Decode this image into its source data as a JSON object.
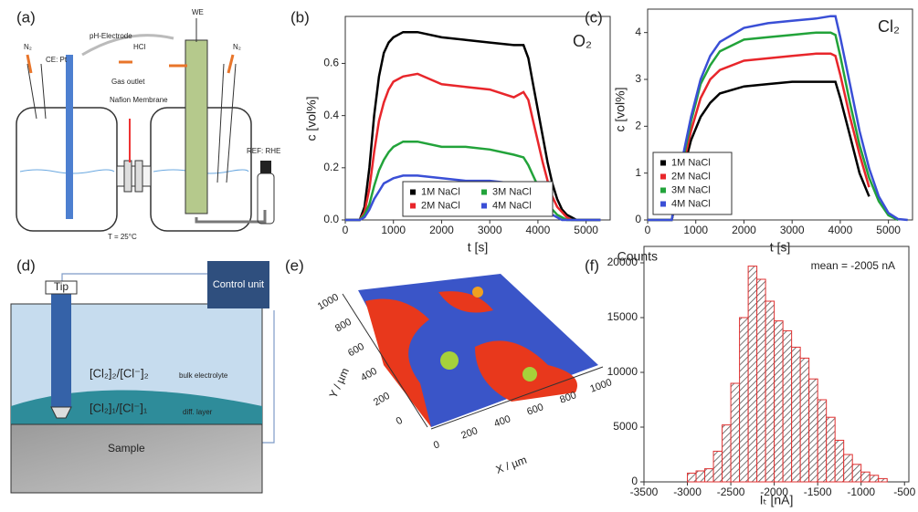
{
  "chart_data": [
    {
      "type": "line",
      "panel": "(b)",
      "annotation": "O₂",
      "ylabel": "c [vol%]",
      "xlabel": "t [s]",
      "x": [
        0,
        300,
        400,
        500,
        600,
        700,
        800,
        900,
        1000,
        1200,
        1500,
        2000,
        2500,
        3000,
        3500,
        3700,
        3800,
        3900,
        4000,
        4100,
        4200,
        4300,
        4400,
        4500,
        4600,
        4700,
        4800,
        5000,
        5300
      ],
      "series": [
        {
          "name": "1M NaCl",
          "color": "#000000",
          "values": [
            0,
            0,
            0.05,
            0.2,
            0.4,
            0.55,
            0.64,
            0.68,
            0.7,
            0.72,
            0.72,
            0.7,
            0.69,
            0.68,
            0.67,
            0.67,
            0.62,
            0.52,
            0.42,
            0.32,
            0.22,
            0.14,
            0.08,
            0.04,
            0.02,
            0.01,
            0,
            0,
            0
          ]
        },
        {
          "name": "2M NaCl",
          "color": "#e8262b",
          "values": [
            0,
            0,
            0.03,
            0.12,
            0.26,
            0.38,
            0.45,
            0.5,
            0.53,
            0.55,
            0.56,
            0.52,
            0.51,
            0.5,
            0.47,
            0.49,
            0.46,
            0.38,
            0.3,
            0.22,
            0.15,
            0.09,
            0.05,
            0.03,
            0.01,
            0,
            0,
            0,
            0
          ]
        },
        {
          "name": "3M NaCl",
          "color": "#22a33a",
          "values": [
            0,
            0,
            0.02,
            0.06,
            0.13,
            0.19,
            0.23,
            0.26,
            0.28,
            0.3,
            0.3,
            0.28,
            0.28,
            0.27,
            0.25,
            0.24,
            0.21,
            0.17,
            0.13,
            0.09,
            0.06,
            0.04,
            0.02,
            0.01,
            0,
            0,
            0,
            0,
            0
          ]
        },
        {
          "name": "4M NaCl",
          "color": "#3a4fd6",
          "values": [
            0,
            0,
            0.01,
            0.04,
            0.08,
            0.11,
            0.14,
            0.15,
            0.16,
            0.17,
            0.17,
            0.16,
            0.15,
            0.15,
            0.14,
            0.14,
            0.12,
            0.1,
            0.08,
            0.06,
            0.04,
            0.02,
            0.01,
            0,
            0,
            0,
            0,
            0,
            0
          ]
        }
      ],
      "xlim": [
        0,
        5500
      ],
      "xticks": [
        0,
        1000,
        2000,
        3000,
        4000,
        5000
      ],
      "ylim": [
        0,
        0.78
      ],
      "yticks": [
        {
          "value": 0,
          "label": "0.0"
        },
        0.2,
        0.4,
        0.6
      ],
      "grid": false,
      "legend": "lower center",
      "legend_ncol": 2
    },
    {
      "type": "line",
      "panel": "(c)",
      "annotation": "Cl₂",
      "ylabel": "c [vol%]",
      "xlabel": "t [s]",
      "x": [
        0,
        500,
        700,
        900,
        1100,
        1300,
        1500,
        2000,
        2500,
        3000,
        3500,
        3800,
        3900,
        4000,
        4200,
        4400,
        4600,
        4800,
        5000,
        5200,
        5400
      ],
      "series": [
        {
          "name": "1M NaCl",
          "color": "#000000",
          "values": [
            0,
            0,
            0.9,
            1.7,
            2.2,
            2.5,
            2.7,
            2.85,
            2.9,
            2.95,
            2.95,
            2.95,
            2.95,
            2.6,
            1.8,
            1.0,
            0.5,
            null,
            null,
            null,
            null
          ]
        },
        {
          "name": "2M NaCl",
          "color": "#e8262b",
          "values": [
            0,
            0,
            1.0,
            1.9,
            2.6,
            3.0,
            3.2,
            3.4,
            3.45,
            3.5,
            3.55,
            3.55,
            3.5,
            3.1,
            2.2,
            1.4,
            0.7,
            null,
            null,
            null,
            null
          ]
        },
        {
          "name": "3M NaCl",
          "color": "#22a33a",
          "values": [
            0,
            0,
            1.1,
            2.1,
            2.9,
            3.3,
            3.6,
            3.85,
            3.9,
            3.95,
            4.0,
            4.0,
            3.95,
            3.5,
            2.5,
            1.6,
            0.9,
            0.4,
            0.1,
            0,
            null
          ]
        },
        {
          "name": "4M NaCl",
          "color": "#3a4fd6",
          "values": [
            0,
            0,
            1.2,
            2.2,
            3.0,
            3.5,
            3.8,
            4.1,
            4.2,
            4.25,
            4.3,
            4.35,
            4.35,
            3.9,
            2.9,
            1.9,
            1.1,
            0.5,
            0.15,
            0.02,
            0
          ]
        }
      ],
      "xlim": [
        0,
        5500
      ],
      "xticks": [
        0,
        1000,
        2000,
        3000,
        4000,
        5000
      ],
      "ylim": [
        0,
        4.5
      ],
      "yticks": [
        0,
        1,
        2,
        3,
        4
      ],
      "grid": false,
      "legend": "lower left",
      "legend_ncol": 1
    },
    {
      "type": "histogram",
      "panel": "(f)",
      "ylabel": "Counts",
      "xlabel": "Iₜ [nA]",
      "annotation": "mean = -2005 nA",
      "bins": [
        -3000,
        -2900,
        -2800,
        -2700,
        -2600,
        -2500,
        -2400,
        -2300,
        -2200,
        -2100,
        -2000,
        -1900,
        -1800,
        -1700,
        -1600,
        -1500,
        -1400,
        -1300,
        -1200,
        -1100,
        -1000,
        -900,
        -800,
        -700
      ],
      "values": [
        800,
        1000,
        1200,
        2800,
        5200,
        9000,
        15000,
        19700,
        18500,
        16500,
        14700,
        13800,
        12300,
        11300,
        9400,
        7500,
        5900,
        3800,
        2500,
        1600,
        900,
        600,
        300
      ],
      "color": "#e03030",
      "xlim": [
        -3500,
        -450
      ],
      "xticks": [
        -3500,
        -3000,
        -2500,
        -2000,
        -1500,
        -1000,
        -500
      ],
      "ylim": [
        0,
        21500
      ],
      "yticks": [
        0,
        5000,
        10000,
        15000,
        20000
      ],
      "grid": false
    }
  ],
  "diagrams": {
    "a": {
      "panel": "(a)",
      "ph": "pH-Electrode",
      "hcl": "HCl",
      "we": "WE",
      "n2_left": "N₂",
      "n2_right": "N₂",
      "ce": "CE: Pt",
      "gas": "Gas outlet",
      "nafion": "Nafion Membrane",
      "ref": "REF: RHE",
      "temp": "T = 25°C"
    },
    "d": {
      "panel": "(d)",
      "control": "Control unit",
      "tip": "Tip",
      "bulk_conc": "[Cl₂]₂/[Cl⁻]₂",
      "bulk": "bulk electrolyte",
      "diff_conc": "[Cl₂]₁/[Cl⁻]₁",
      "diff": "diff. layer",
      "sample": "Sample"
    },
    "e": {
      "panel": "(e)",
      "xlabel": "X / µm",
      "ylabel": "Y / µm",
      "xticks": [
        0,
        200,
        400,
        600,
        800,
        1000
      ],
      "yticks": [
        0,
        200,
        400,
        600,
        800,
        1000
      ]
    }
  }
}
